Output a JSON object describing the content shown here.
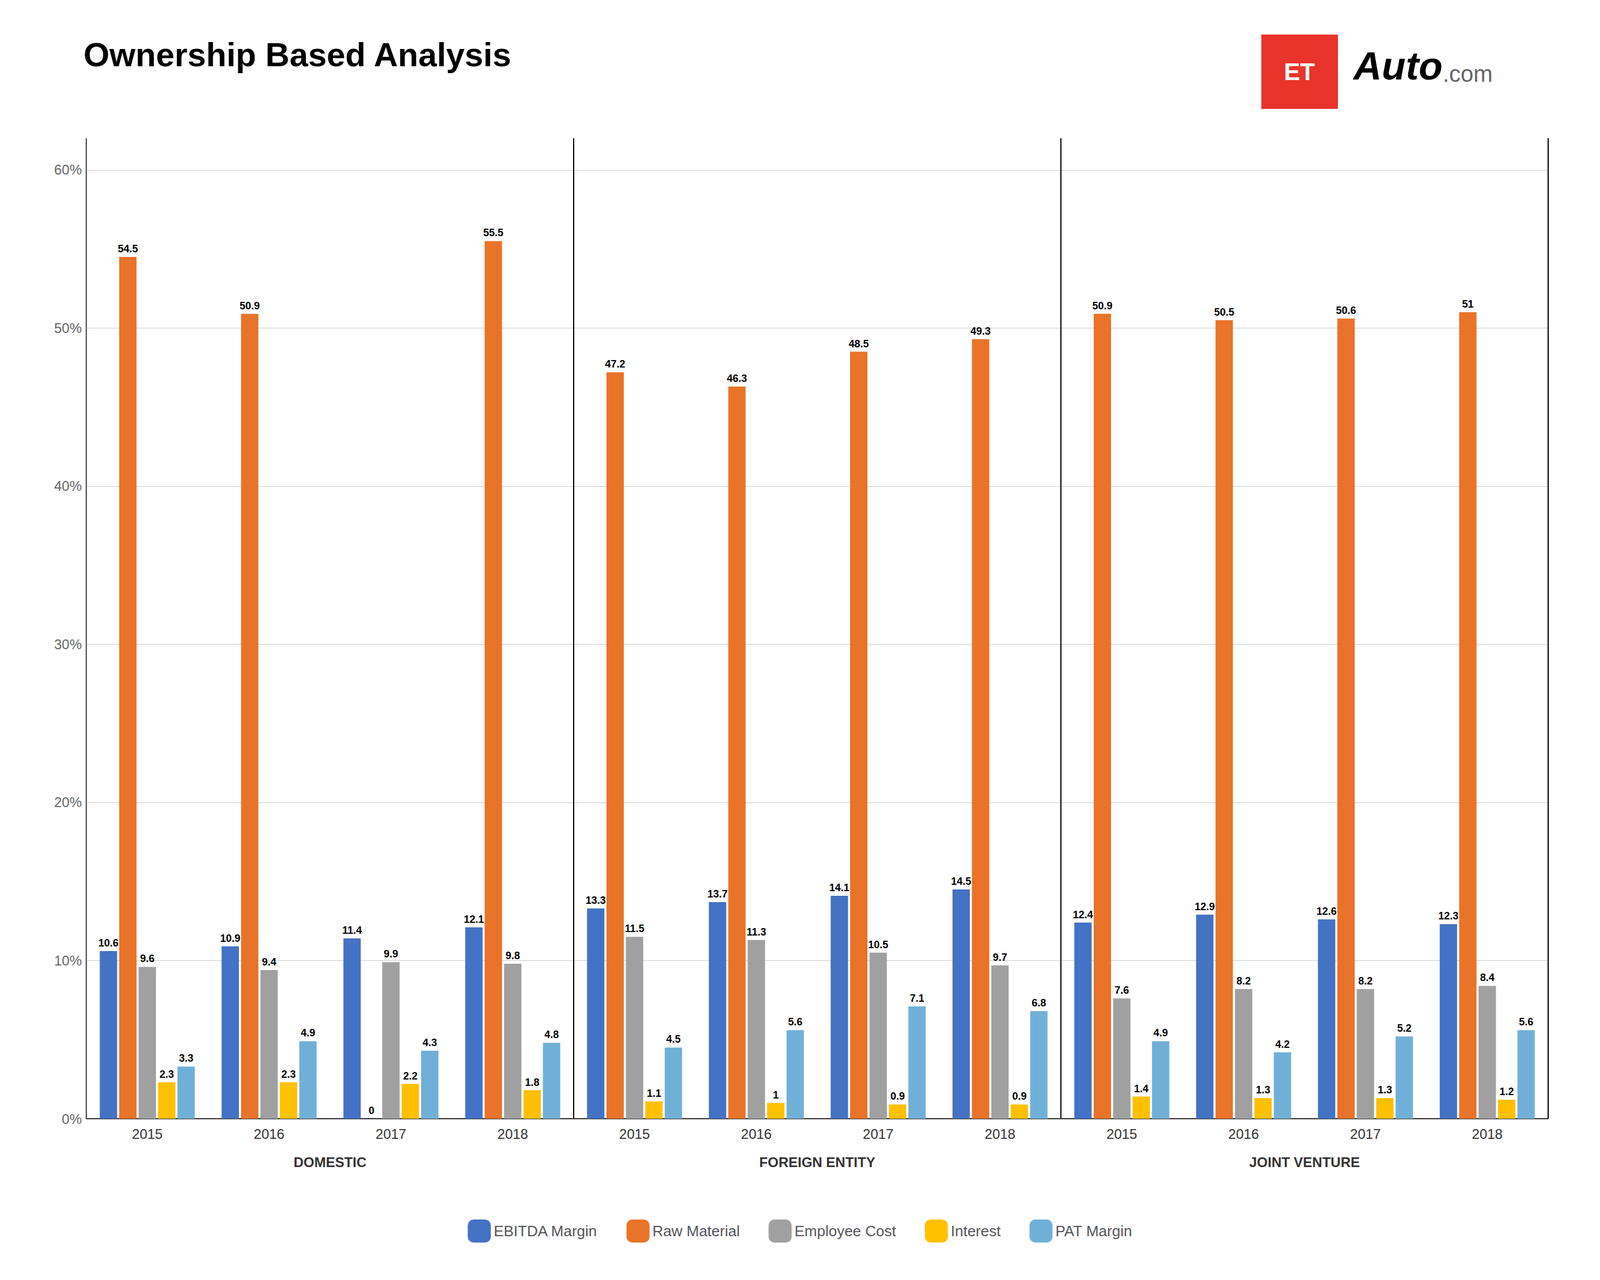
{
  "chart_data": {
    "type": "bar",
    "title": "Ownership Based Analysis",
    "annotations": [
      "ET",
      "Auto",
      ".com"
    ],
    "groups": [
      "DOMESTIC",
      "FOREIGN ENTITY",
      "JOINT VENTURE"
    ],
    "categories": [
      "2015",
      "2016",
      "2017",
      "2018",
      "2015",
      "2016",
      "2017",
      "2018",
      "2015",
      "2016",
      "2017",
      "2018"
    ],
    "series": [
      {
        "name": "EBITDA Margin",
        "color": "#4472C4",
        "values": [
          10.6,
          10.9,
          11.4,
          12.1,
          13.3,
          13.7,
          14.1,
          14.5,
          12.4,
          12.9,
          12.6,
          12.3
        ]
      },
      {
        "name": "Raw Material",
        "color": "#E97328",
        "values": [
          54.5,
          50.9,
          0.0,
          55.5,
          47.2,
          46.3,
          48.5,
          49.3,
          50.9,
          50.5,
          50.6,
          51.0
        ]
      },
      {
        "name": "Employee Cost",
        "color": "#A0A0A0",
        "values": [
          9.6,
          9.4,
          9.9,
          9.8,
          11.5,
          11.3,
          10.5,
          9.7,
          7.6,
          8.2,
          8.2,
          8.4
        ]
      },
      {
        "name": "Interest",
        "color": "#FFC000",
        "values": [
          2.3,
          2.3,
          2.2,
          1.8,
          1.1,
          1.0,
          0.9,
          0.9,
          1.4,
          1.3,
          1.3,
          1.2
        ]
      },
      {
        "name": "PAT Margin",
        "color": "#70B0D8",
        "values": [
          3.3,
          4.9,
          4.3,
          4.8,
          4.5,
          5.6,
          7.1,
          6.8,
          4.9,
          4.2,
          5.2,
          5.6
        ]
      }
    ],
    "ylim": [
      0,
      62
    ],
    "yticks": [
      {
        "value": 0,
        "label": "0%"
      },
      {
        "value": 10,
        "label": "10%"
      },
      {
        "value": 20,
        "label": "20%"
      },
      {
        "value": 30,
        "label": "30%"
      },
      {
        "value": 40,
        "label": "40%"
      },
      {
        "value": 50,
        "label": "50%"
      },
      {
        "value": 60,
        "label": "60%"
      }
    ],
    "grid": true,
    "legend": "bottom",
    "data_labels": true
  }
}
